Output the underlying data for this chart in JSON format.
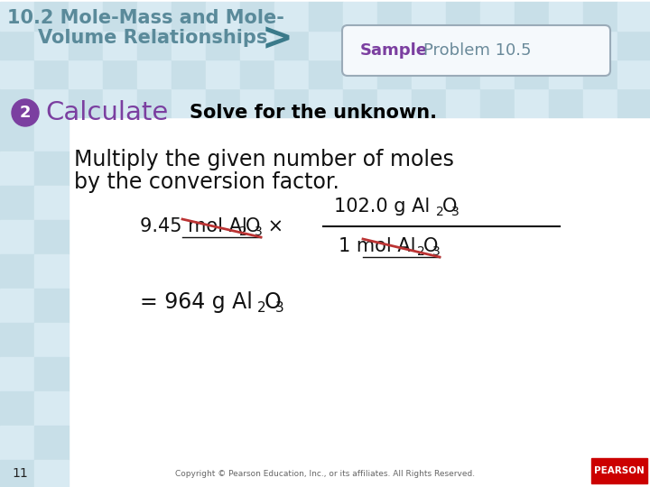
{
  "header_text_line1": "10.2 Mole-Mass and Mole-",
  "header_text_line2": "Volume Relationships",
  "header_text_color": "#5a8a9a",
  "arrow_color": "#3a7a8a",
  "sample_label": "Sample",
  "sample_color": "#7b3fa0",
  "problem_label": "Problem 10.5",
  "problem_color": "#6a8a9a",
  "badge_color": "#7b3fa0",
  "calculate_color": "#7b3fa0",
  "subtitle_color": "#000000",
  "body_color": "#111111",
  "strikethrough_color": "#bb3333",
  "footer_text": "Copyright © Pearson Education, Inc., or its affiliates. All Rights Reserved.",
  "footer_color": "#666666",
  "tile_color_a": "#c8dfe8",
  "tile_color_b": "#d8eaf2",
  "tile_size": 38
}
